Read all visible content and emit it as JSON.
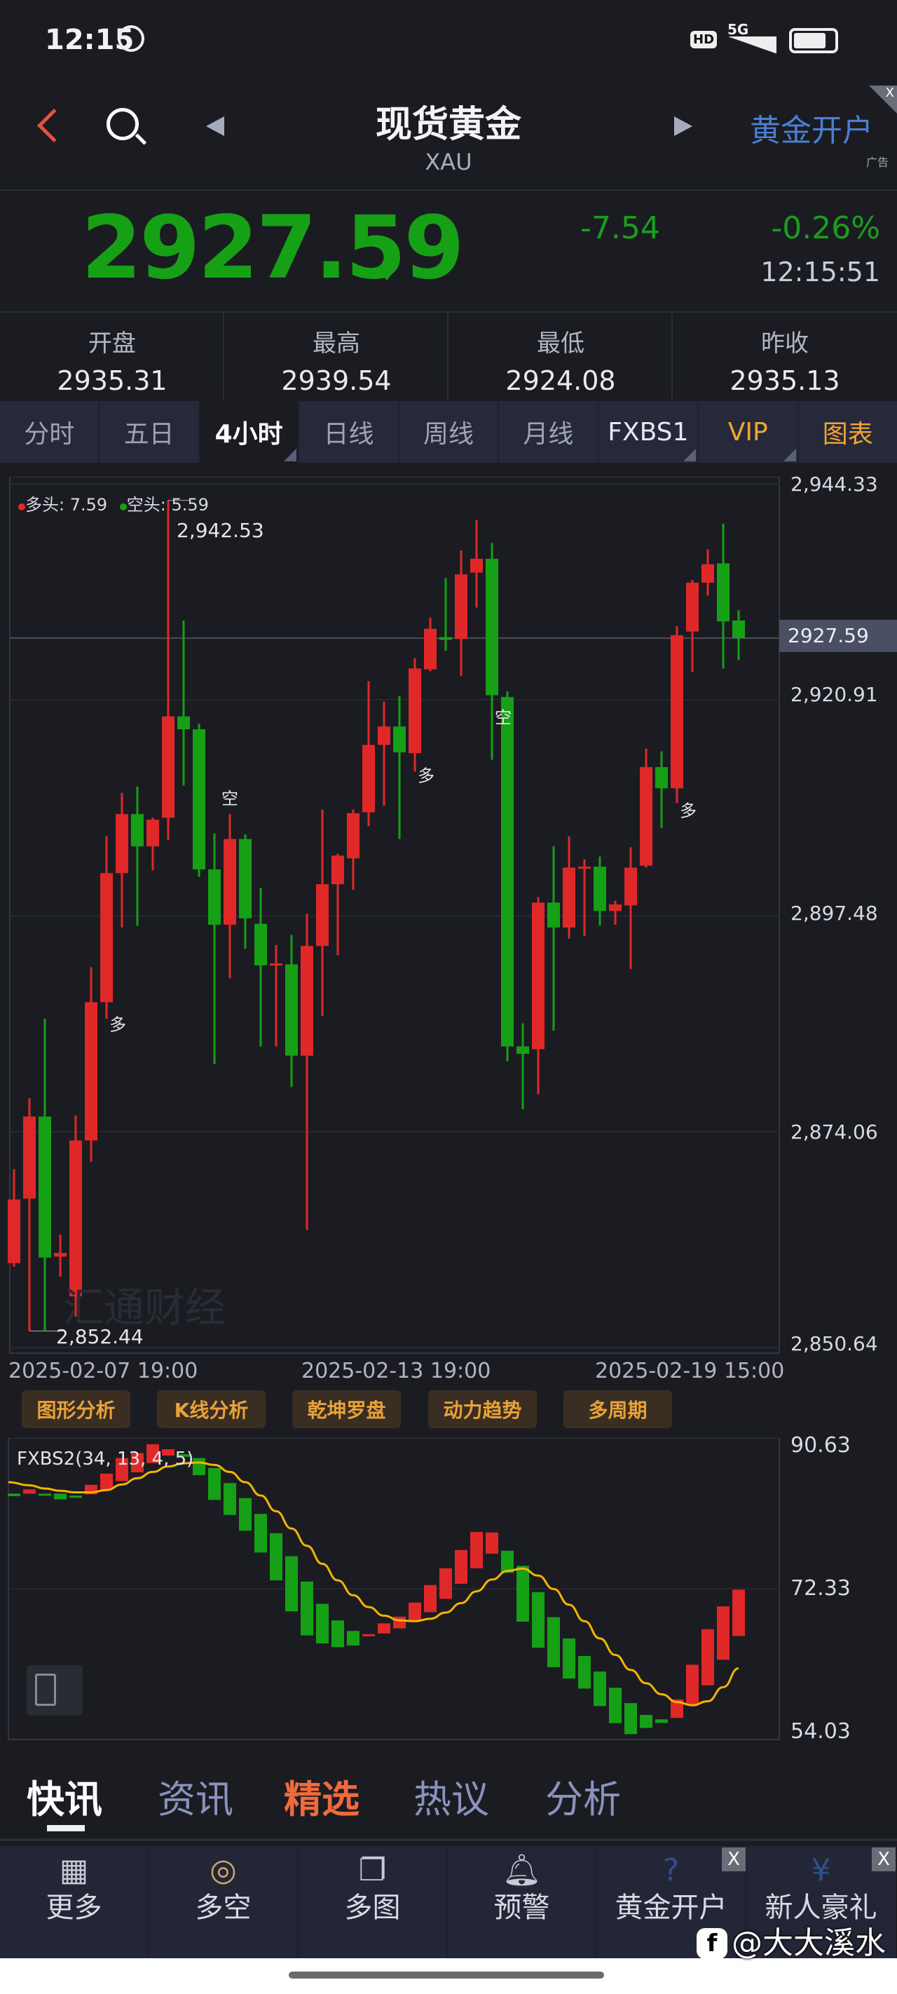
{
  "status_bar": {
    "time": "12:15",
    "network": "5G",
    "hd": "HD"
  },
  "header": {
    "title": "现货黄金",
    "symbol": "XAU",
    "ad_text": "黄金开户",
    "ad_tag": "广告",
    "ad_close": "X"
  },
  "quote": {
    "price": "2927.59",
    "direction": "down",
    "change": "-7.54",
    "change_pct": "-0.26%",
    "time": "12:15:51",
    "price_color": "#16a016"
  },
  "stats": [
    {
      "label": "开盘",
      "value": "2935.31"
    },
    {
      "label": "最高",
      "value": "2939.54"
    },
    {
      "label": "最低",
      "value": "2924.08"
    },
    {
      "label": "昨收",
      "value": "2935.13"
    }
  ],
  "period_tabs": [
    {
      "label": "分时"
    },
    {
      "label": "五日"
    },
    {
      "label": "4小时",
      "active": true
    },
    {
      "label": "日线"
    },
    {
      "label": "周线"
    },
    {
      "label": "月线"
    },
    {
      "label": "FXBS1"
    },
    {
      "label": "VIP"
    },
    {
      "label": "图表"
    }
  ],
  "chart_data": [
    {
      "type": "candlestick",
      "legend": {
        "long_label": "多头: 7.59",
        "short_label": "空头: 5.59",
        "long_color": "#e02828",
        "short_color": "#16a016"
      },
      "y_ticks": [
        "2,944.33",
        "2,920.91",
        "2,897.48",
        "2,874.06",
        "2,850.64"
      ],
      "ylim": [
        2850.64,
        2944.33
      ],
      "x_labels": [
        "2025-02-07 19:00",
        "2025-02-13 19:00",
        "2025-02-19 15:00"
      ],
      "current_price": "2927.59",
      "max_label": "2,942.53",
      "min_label": "2,852.44",
      "watermark": "汇通财经",
      "ohlc": [
        [
          2859.8,
          2870.0,
          2859.4,
          2866.7
        ],
        [
          2866.8,
          2877.7,
          2852.44,
          2875.7
        ],
        [
          2875.7,
          2886.3,
          2852.5,
          2860.4
        ],
        [
          2860.5,
          2862.9,
          2858.3,
          2860.9
        ],
        [
          2856.2,
          2875.8,
          2854.0,
          2873.1
        ],
        [
          2873.1,
          2891.9,
          2870.8,
          2888.1
        ],
        [
          2888.1,
          2906.1,
          2886.3,
          2902.1
        ],
        [
          2902.1,
          2910.8,
          2896.2,
          2908.5
        ],
        [
          2908.5,
          2911.5,
          2896.4,
          2905.0
        ],
        [
          2905.0,
          2908.1,
          2902.4,
          2907.9
        ],
        [
          2908.1,
          2942.53,
          2905.7,
          2919.1
        ],
        [
          2919.1,
          2929.5,
          2911.6,
          2917.7
        ],
        [
          2917.7,
          2918.3,
          2901.7,
          2902.5
        ],
        [
          2902.5,
          2906.4,
          2881.4,
          2896.5
        ],
        [
          2896.5,
          2908.5,
          2890.7,
          2905.8
        ],
        [
          2905.8,
          2906.3,
          2893.9,
          2897.2
        ],
        [
          2896.6,
          2900.5,
          2883.3,
          2892.1
        ],
        [
          2892.1,
          2894.3,
          2883.3,
          2892.3
        ],
        [
          2892.2,
          2895.4,
          2878.9,
          2882.3
        ],
        [
          2882.3,
          2897.7,
          2863.4,
          2894.2
        ],
        [
          2894.2,
          2909.0,
          2886.6,
          2900.9
        ],
        [
          2900.9,
          2904.2,
          2893.2,
          2904.0
        ],
        [
          2903.7,
          2909.0,
          2900.3,
          2908.6
        ],
        [
          2908.7,
          2922.9,
          2907.2,
          2916.0
        ],
        [
          2916.0,
          2920.7,
          2909.4,
          2918.0
        ],
        [
          2918.0,
          2921.3,
          2905.8,
          2915.2
        ],
        [
          2915.1,
          2925.4,
          2913.1,
          2924.3
        ],
        [
          2924.2,
          2929.8,
          2924.0,
          2928.6
        ],
        [
          2927.7,
          2934.1,
          2926.2,
          2927.4
        ],
        [
          2927.5,
          2937.1,
          2923.5,
          2934.5
        ],
        [
          2934.7,
          2940.4,
          2930.9,
          2936.2
        ],
        [
          2936.2,
          2937.9,
          2914.4,
          2921.4
        ],
        [
          2921.2,
          2921.8,
          2881.7,
          2883.3
        ],
        [
          2883.3,
          2885.8,
          2876.5,
          2882.5
        ],
        [
          2883.0,
          2899.5,
          2878.1,
          2898.9
        ],
        [
          2898.9,
          2905.0,
          2885.0,
          2896.2
        ],
        [
          2896.2,
          2906.1,
          2895.0,
          2902.7
        ],
        [
          2902.6,
          2903.6,
          2895.3,
          2902.8
        ],
        [
          2902.8,
          2903.9,
          2896.4,
          2898.0
        ],
        [
          2898.0,
          2899.1,
          2896.5,
          2898.7
        ],
        [
          2898.6,
          2904.9,
          2891.7,
          2902.7
        ],
        [
          2902.9,
          2915.6,
          2902.7,
          2913.6
        ],
        [
          2913.6,
          2915.3,
          2907.0,
          2911.3
        ],
        [
          2911.3,
          2928.9,
          2909.7,
          2927.9
        ],
        [
          2928.3,
          2933.9,
          2923.9,
          2933.6
        ],
        [
          2933.6,
          2937.2,
          2932.2,
          2935.6
        ],
        [
          2935.7,
          2940.0,
          2924.3,
          2929.4
        ],
        [
          2929.5,
          2930.6,
          2925.2,
          2927.6
        ]
      ],
      "signals": [
        {
          "index": 6,
          "label": "多",
          "position": "below"
        },
        {
          "index": 14,
          "label": "空",
          "position": "above"
        },
        {
          "index": 26,
          "label": "多",
          "position": "below"
        },
        {
          "index": 31,
          "label": "空",
          "position": "below"
        },
        {
          "index": 43,
          "label": "多",
          "position": "below"
        }
      ],
      "up_color": "#e02828",
      "down_color": "#16a016"
    },
    {
      "type": "bar",
      "title": "FXBS2(34, 13, 4, 5)",
      "y_ticks": [
        "90.63",
        "72.33",
        "54.03"
      ],
      "ylim": [
        54.03,
        90.63
      ],
      "bars": [
        [
          84.44,
          84.12
        ],
        [
          84.44,
          84.98
        ],
        [
          84.44,
          84.35
        ],
        [
          84.44,
          83.71
        ],
        [
          84.19,
          83.93
        ],
        [
          84.35,
          85.56
        ],
        [
          84.98,
          86.99
        ],
        [
          86.04,
          88.97
        ],
        [
          87.15,
          89.61
        ],
        [
          88.33,
          90.73
        ],
        [
          89.29,
          90.09
        ],
        [
          89.45,
          89.13
        ],
        [
          88.97,
          86.8
        ],
        [
          87.7,
          83.64
        ],
        [
          85.78,
          81.73
        ],
        [
          83.87,
          79.72
        ],
        [
          81.86,
          76.94
        ],
        [
          79.4,
          73.4
        ],
        [
          76.47,
          69.45
        ],
        [
          73.24,
          66.39
        ],
        [
          70.41,
          65.37
        ],
        [
          68.3,
          64.89
        ],
        [
          66.96,
          65.11
        ],
        [
          66.42,
          66.55
        ],
        [
          66.64,
          67.92
        ],
        [
          67.28,
          68.78
        ],
        [
          68.24,
          70.57
        ],
        [
          69.35,
          72.8
        ],
        [
          71.04,
          74.94
        ],
        [
          72.96,
          77.26
        ],
        [
          74.94,
          79.56
        ],
        [
          76.79,
          79.5
        ],
        [
          77.17,
          74.36
        ],
        [
          75.25,
          68.14
        ],
        [
          71.9,
          64.82
        ],
        [
          68.71,
          62.34
        ],
        [
          66.0,
          60.9
        ],
        [
          63.77,
          59.62
        ],
        [
          61.79,
          57.39
        ],
        [
          59.72,
          55.22
        ],
        [
          57.77,
          53.82
        ],
        [
          56.27,
          54.61
        ],
        [
          55.7,
          55.25
        ],
        [
          55.89,
          58.25
        ],
        [
          57.55,
          62.65
        ],
        [
          60.04,
          67.18
        ],
        [
          63.29,
          70.09
        ],
        [
          66.32,
          72.22
        ]
      ],
      "signal_line": [
        85.9,
        85.5,
        85.1,
        84.8,
        84.6,
        84.6,
        84.9,
        85.6,
        86.4,
        87.2,
        87.9,
        88.3,
        88.4,
        88.1,
        87.2,
        85.9,
        84.2,
        82.2,
        80.0,
        77.8,
        75.5,
        73.4,
        71.5,
        70.0,
        68.9,
        68.3,
        68.2,
        68.5,
        69.3,
        70.5,
        72.0,
        73.5,
        74.6,
        74.9,
        74.0,
        72.3,
        70.3,
        68.2,
        66.0,
        63.9,
        62.0,
        60.3,
        58.9,
        57.9,
        57.5,
        58.0,
        59.8,
        62.2
      ],
      "line_color": "#f5b400",
      "up_color": "#e02828",
      "down_color": "#16a016"
    }
  ],
  "analysis_buttons": [
    "图形分析",
    "K线分析",
    "乾坤罗盘",
    "动力趋势",
    "多周期"
  ],
  "news_tabs": [
    {
      "label": "快讯",
      "active": true
    },
    {
      "label": "资讯"
    },
    {
      "label": "精选",
      "highlight": true
    },
    {
      "label": "热议"
    },
    {
      "label": "分析"
    }
  ],
  "bottom_nav": [
    {
      "label": "更多",
      "icon": "grid-icon"
    },
    {
      "label": "多空",
      "icon": "trend-circle-icon"
    },
    {
      "label": "多图",
      "icon": "multi-chart-icon"
    },
    {
      "label": "预警",
      "icon": "bell-icon"
    },
    {
      "label": "黄金开户",
      "icon": "gold-account-icon",
      "close": "X"
    },
    {
      "label": "新人豪礼",
      "icon": "money-bag-icon",
      "close": "X"
    }
  ],
  "watermark": "@大大溪水"
}
